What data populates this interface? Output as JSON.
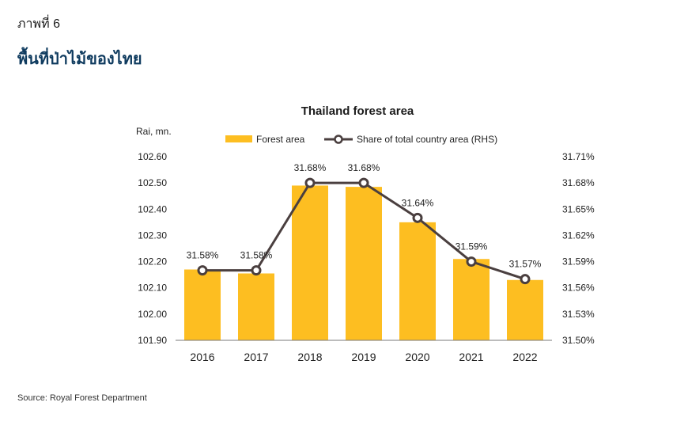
{
  "figure": {
    "label": "ภาพที่ 6",
    "title": "พื้นที่ป่าไม้ของไทย",
    "source": "Source: Royal Forest Department"
  },
  "chart_data": {
    "type": "bar",
    "title": "Thailand forest area",
    "ylabel": "Rai, mn.",
    "categories": [
      "2016",
      "2017",
      "2018",
      "2019",
      "2020",
      "2021",
      "2022"
    ],
    "series": [
      {
        "name": "Forest area",
        "kind": "bar",
        "axis": "left",
        "color": "#FDBE21",
        "values": [
          102.17,
          102.155,
          102.49,
          102.485,
          102.35,
          102.21,
          102.13
        ]
      },
      {
        "name": "Share of total country area (RHS)",
        "kind": "line",
        "axis": "right",
        "color": "#4A3F3F",
        "values": [
          31.58,
          31.58,
          31.68,
          31.68,
          31.64,
          31.59,
          31.57
        ],
        "labels": [
          "31.58%",
          "31.58%",
          "31.68%",
          "31.68%",
          "31.64%",
          "31.59%",
          "31.57%"
        ]
      }
    ],
    "y_left": {
      "range": [
        101.9,
        102.6
      ],
      "ticks": [
        "101.90",
        "102.00",
        "102.10",
        "102.20",
        "102.30",
        "102.40",
        "102.50",
        "102.60"
      ]
    },
    "y_right": {
      "range": [
        31.5,
        31.71
      ],
      "ticks": [
        "31.50%",
        "31.53%",
        "31.56%",
        "31.59%",
        "31.62%",
        "31.65%",
        "31.68%",
        "31.71%"
      ]
    },
    "legend_position": "top-center",
    "grid": false
  }
}
